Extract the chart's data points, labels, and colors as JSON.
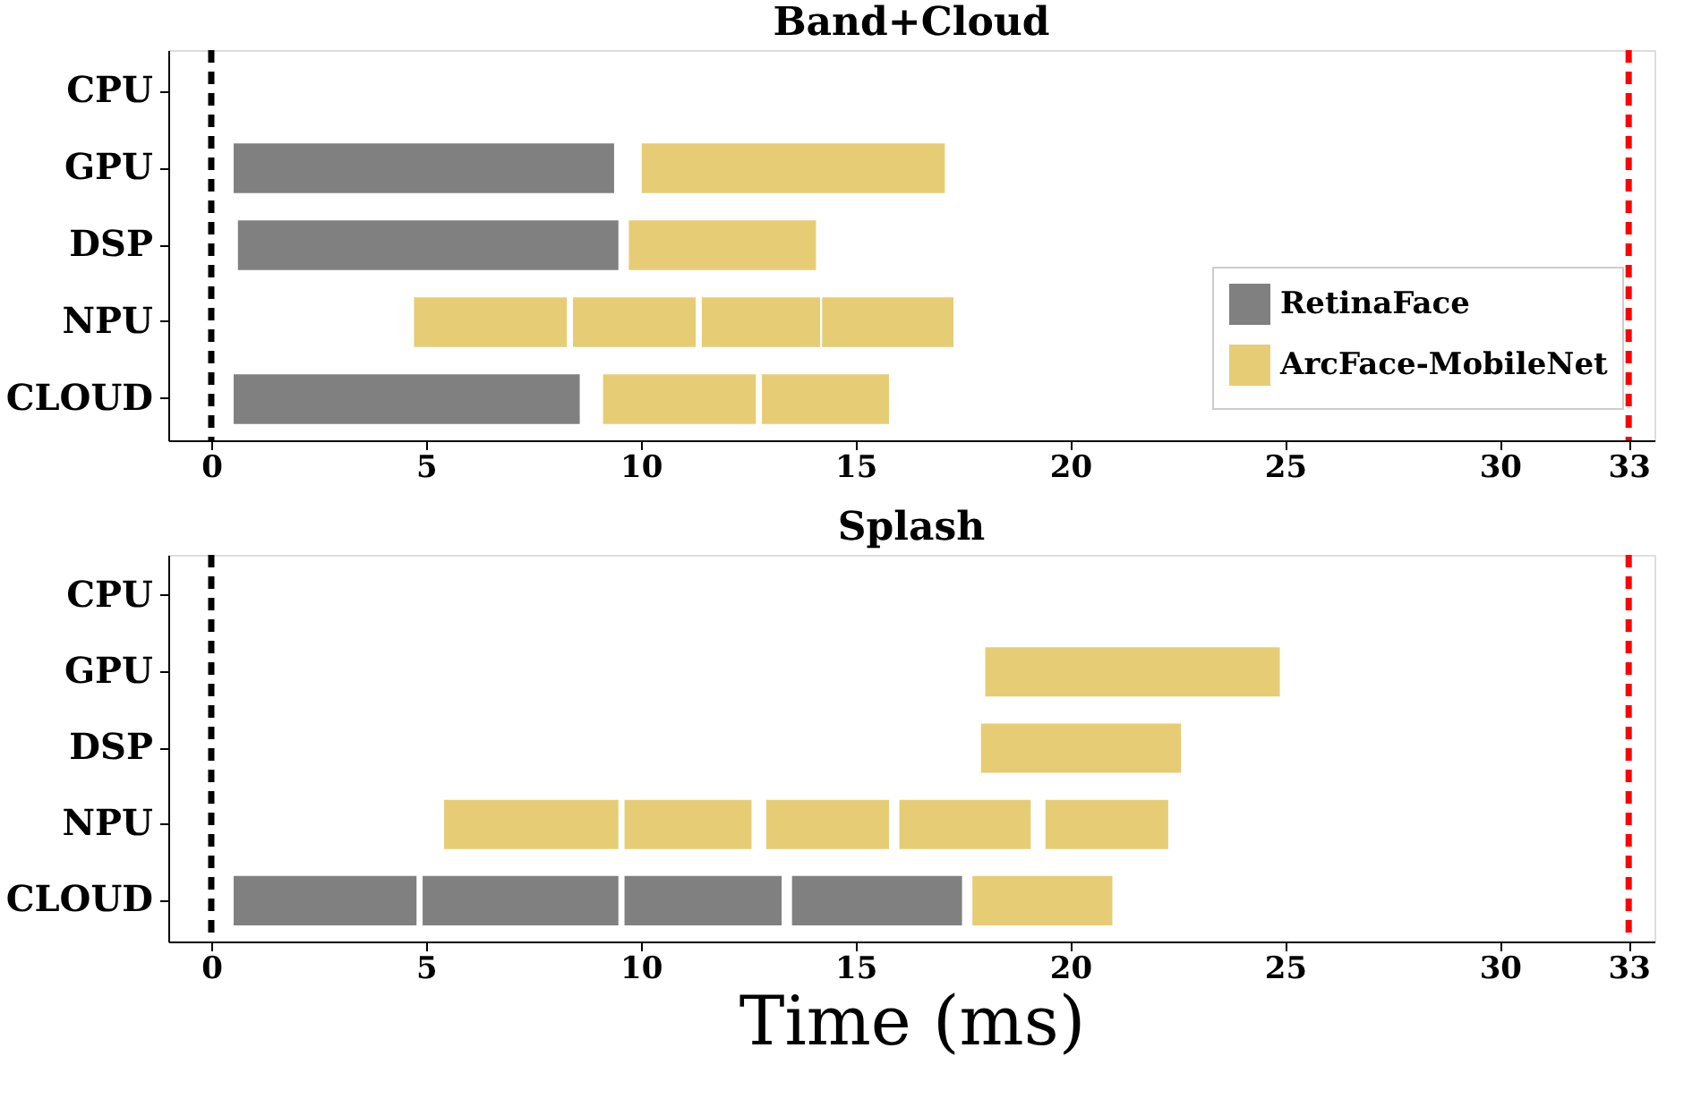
{
  "chart_data": [
    {
      "type": "bar",
      "orientation": "horizontal",
      "title": "Band+Cloud",
      "categories": [
        "CPU",
        "GPU",
        "DSP",
        "NPU",
        "CLOUD"
      ],
      "series": [
        {
          "name": "RetinaFace",
          "color": "#808080",
          "base": [
            null,
            0.5,
            0.6,
            null,
            0.5
          ],
          "values": [
            null,
            8.9,
            8.9,
            null,
            8.1
          ]
        },
        {
          "name": "ArcFace-MobileNet",
          "color": "#e6cd75",
          "base": [
            null,
            10.0,
            9.7,
            4.7,
            9.1
          ],
          "values": [
            null,
            7.1,
            4.4,
            3.6,
            3.6
          ]
        },
        {
          "color": "#e6cd75",
          "base": [
            null,
            null,
            null,
            8.4,
            12.8
          ],
          "values": [
            null,
            null,
            null,
            2.9,
            3.0
          ]
        },
        {
          "color": "#e6cd75",
          "base": [
            null,
            null,
            null,
            11.4,
            null
          ],
          "values": [
            null,
            null,
            null,
            2.8,
            null
          ]
        },
        {
          "color": "#e6cd75",
          "base": [
            null,
            null,
            null,
            14.2,
            null
          ],
          "values": [
            null,
            null,
            null,
            3.1,
            null
          ]
        }
      ],
      "xlim": [
        -1,
        33.6
      ],
      "xticks": [
        0,
        5,
        10,
        15,
        20,
        25,
        30,
        33
      ],
      "grid": false,
      "legend": "bottom right",
      "ref_lines": [
        {
          "axis": "x",
          "value": 0,
          "color": "#000000",
          "line_style": "dashed"
        },
        {
          "axis": "x",
          "value": 33,
          "color": "#ff0000",
          "line_style": "dashed"
        }
      ]
    },
    {
      "type": "bar",
      "orientation": "horizontal",
      "title": "Splash",
      "xlabel": "Time (ms)",
      "categories": [
        "CPU",
        "GPU",
        "DSP",
        "NPU",
        "CLOUD"
      ],
      "series": [
        {
          "color": "#808080",
          "base": [
            null,
            null,
            null,
            null,
            0.5
          ],
          "values": [
            null,
            null,
            null,
            null,
            4.3
          ]
        },
        {
          "color": "#808080",
          "base": [
            null,
            null,
            null,
            null,
            4.9
          ],
          "values": [
            null,
            null,
            null,
            null,
            4.6
          ]
        },
        {
          "color": "#808080",
          "base": [
            null,
            null,
            null,
            null,
            9.6
          ],
          "values": [
            null,
            null,
            null,
            null,
            3.7
          ]
        },
        {
          "color": "#808080",
          "base": [
            null,
            null,
            null,
            null,
            13.5
          ],
          "values": [
            null,
            null,
            null,
            null,
            4.0
          ]
        },
        {
          "color": "#e6cd75",
          "base": [
            null,
            18.0,
            17.9,
            5.4,
            17.7
          ],
          "values": [
            null,
            6.9,
            4.7,
            4.1,
            3.3
          ]
        },
        {
          "color": "#e6cd75",
          "base": [
            null,
            null,
            null,
            9.6,
            null
          ],
          "values": [
            null,
            null,
            null,
            3.0,
            null
          ]
        },
        {
          "color": "#e6cd75",
          "base": [
            null,
            null,
            null,
            12.9,
            null
          ],
          "values": [
            null,
            null,
            null,
            2.9,
            null
          ]
        },
        {
          "color": "#e6cd75",
          "base": [
            null,
            null,
            null,
            16.0,
            null
          ],
          "values": [
            null,
            null,
            null,
            3.1,
            null
          ]
        },
        {
          "color": "#e6cd75",
          "base": [
            null,
            null,
            null,
            19.4,
            null
          ],
          "values": [
            null,
            null,
            null,
            2.9,
            null
          ]
        }
      ],
      "xlim": [
        -1,
        33.6
      ],
      "xticks": [
        0,
        5,
        10,
        15,
        20,
        25,
        30,
        33
      ],
      "grid": false,
      "legend": false,
      "ref_lines": [
        {
          "axis": "x",
          "value": 0,
          "color": "#000000",
          "line_style": "dashed"
        },
        {
          "axis": "x",
          "value": 33,
          "color": "#ff0000",
          "line_style": "dashed"
        }
      ]
    }
  ]
}
